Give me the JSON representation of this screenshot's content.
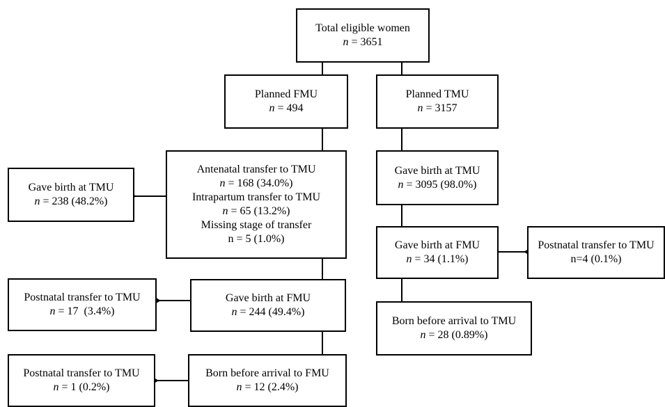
{
  "boxes": {
    "total": {
      "lines": [
        "Total eligible women",
        "n = 3651"
      ]
    },
    "planned_fmu": {
      "lines": [
        "Planned FMU",
        "n = 494"
      ]
    },
    "planned_tmu": {
      "lines": [
        "Planned TMU",
        "n = 3157"
      ]
    },
    "fmu_transfers": {
      "lines": [
        "Antenatal transfer to TMU",
        "n = 168 (34.0%)",
        "Intrapartum transfer to TMU",
        "n = 65 (13.2%)",
        "Missing stage of transfer",
        "n = 5 (1.0%)"
      ]
    },
    "fmu_gave_birth_tmu": {
      "lines": [
        "Gave birth at TMU",
        "n = 238 (48.2%)"
      ]
    },
    "tmu_gave_birth_tmu": {
      "lines": [
        "Gave birth at TMU",
        "n = 3095 (98.0%)"
      ]
    },
    "tmu_gave_birth_fmu": {
      "lines": [
        "Gave birth at FMU",
        "n = 34 (1.1%)"
      ]
    },
    "tmu_postnatal": {
      "lines": [
        "Postnatal transfer to TMU",
        "n=4 (0.1%)"
      ]
    },
    "fmu_gave_birth_fmu": {
      "lines": [
        "Gave birth at FMU",
        "n = 244 (49.4%)"
      ]
    },
    "fmu_postnatal_17": {
      "lines": [
        "Postnatal transfer to TMU",
        "n = 17  (3.4%)"
      ]
    },
    "tmu_bba": {
      "lines": [
        "Born before arrival to TMU",
        "n = 28 (0.89%)"
      ]
    },
    "fmu_bba": {
      "lines": [
        "Born before arrival to FMU",
        "n = 12 (2.4%)"
      ]
    },
    "fmu_postnatal_1": {
      "lines": [
        "Postnatal transfer to TMU",
        "n = 1 (0.2%)"
      ]
    }
  }
}
